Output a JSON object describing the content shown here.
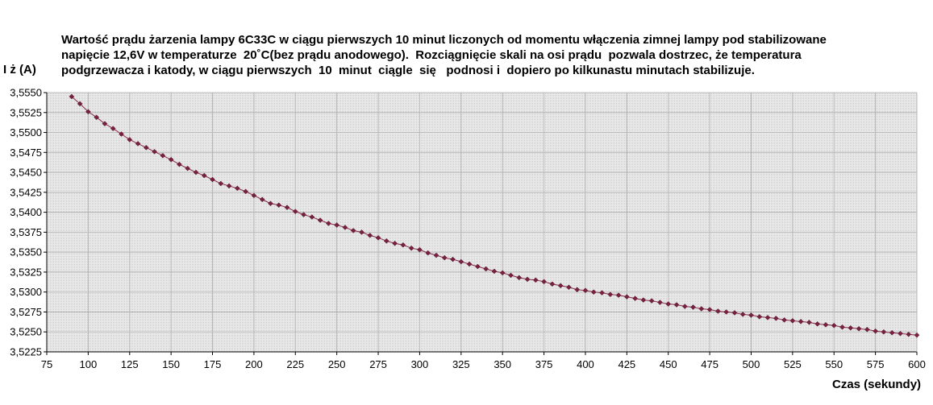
{
  "chart_data": {
    "type": "line",
    "title_lines": [
      "Wartość prądu żarzenia lampy 6C33C w ciągu pierwszych 10 minut liczonych od momentu włączenia zimnej lampy pod stabilizowane",
      "napięcie 12,6V w temperaturze  20˚C(bez prądu anodowego).  Rozciągnięcie skali na osi prądu  pozwala dostrzec, że temperatura",
      "podgrzewacza i katody, w ciągu pierwszych  10  minut  ciągle  się   podnosi i  dopiero po kilkunastu minutach stabilizuje."
    ],
    "xlabel": "Czas (sekundy)",
    "ylabel": "I ż (A)",
    "xlim": [
      75,
      600
    ],
    "ylim": [
      3.5225,
      3.555
    ],
    "x_ticks": [
      "75",
      "100",
      "125",
      "150",
      "175",
      "200",
      "225",
      "250",
      "275",
      "300",
      "325",
      "350",
      "375",
      "400",
      "425",
      "450",
      "475",
      "500",
      "525",
      "550",
      "575",
      "600"
    ],
    "y_ticks": [
      "3,5550",
      "3,5525",
      "3,5500",
      "3,5475",
      "3,5450",
      "3,5425",
      "3,5400",
      "3,5375",
      "3,5350",
      "3,5325",
      "3,5300",
      "3,5275",
      "3,5250",
      "3,5225"
    ],
    "grid": true,
    "legend": "none",
    "marker": "diamond",
    "colors": {
      "line": "#8a2a4a",
      "marker": "#7a2040",
      "grid": "#b8b8b8",
      "plot_bg": "#e6e6e6",
      "axis": "#000000"
    },
    "series": [
      {
        "x": [
          90,
          95,
          100,
          105,
          110,
          115,
          120,
          125,
          130,
          135,
          140,
          145,
          150,
          155,
          160,
          165,
          170,
          175,
          180,
          185,
          190,
          195,
          200,
          205,
          210,
          215,
          220,
          225,
          230,
          235,
          240,
          245,
          250,
          255,
          260,
          265,
          270,
          275,
          280,
          285,
          290,
          295,
          300,
          305,
          310,
          315,
          320,
          325,
          330,
          335,
          340,
          345,
          350,
          355,
          360,
          365,
          370,
          375,
          380,
          385,
          390,
          395,
          400,
          405,
          410,
          415,
          420,
          425,
          430,
          435,
          440,
          445,
          450,
          455,
          460,
          465,
          470,
          475,
          480,
          485,
          490,
          495,
          500,
          505,
          510,
          515,
          520,
          525,
          530,
          535,
          540,
          545,
          550,
          555,
          560,
          565,
          570,
          575,
          580,
          585,
          590,
          595,
          600
        ],
        "y": [
          3.5545,
          3.5536,
          3.5526,
          3.5519,
          3.5511,
          3.5505,
          3.5498,
          3.5491,
          3.5486,
          3.5481,
          3.5476,
          3.5471,
          3.5466,
          3.546,
          3.5455,
          3.545,
          3.5446,
          3.5441,
          3.5436,
          3.5433,
          3.543,
          3.5426,
          3.5421,
          3.5416,
          3.5411,
          3.5409,
          3.5406,
          3.5401,
          3.5397,
          3.5394,
          3.539,
          3.5386,
          3.5384,
          3.5381,
          3.5377,
          3.5375,
          3.5371,
          3.5368,
          3.5364,
          3.5361,
          3.5359,
          3.5355,
          3.5353,
          3.5349,
          3.5346,
          3.5343,
          3.5341,
          3.5338,
          3.5335,
          3.5332,
          3.5329,
          3.5326,
          3.5324,
          3.5321,
          3.5318,
          3.5316,
          3.5315,
          3.5313,
          3.531,
          3.5308,
          3.5306,
          3.5303,
          3.5302,
          3.53,
          3.5299,
          3.5297,
          3.5296,
          3.5294,
          3.5292,
          3.529,
          3.5289,
          3.5287,
          3.5285,
          3.5284,
          3.5282,
          3.5281,
          3.5279,
          3.5278,
          3.5276,
          3.5275,
          3.5274,
          3.5272,
          3.5271,
          3.5269,
          3.5268,
          3.5267,
          3.5265,
          3.5264,
          3.5263,
          3.5262,
          3.526,
          3.5259,
          3.5258,
          3.5256,
          3.5255,
          3.5254,
          3.5253,
          3.5251,
          3.525,
          3.5249,
          3.5248,
          3.5247,
          3.5246
        ]
      }
    ]
  }
}
